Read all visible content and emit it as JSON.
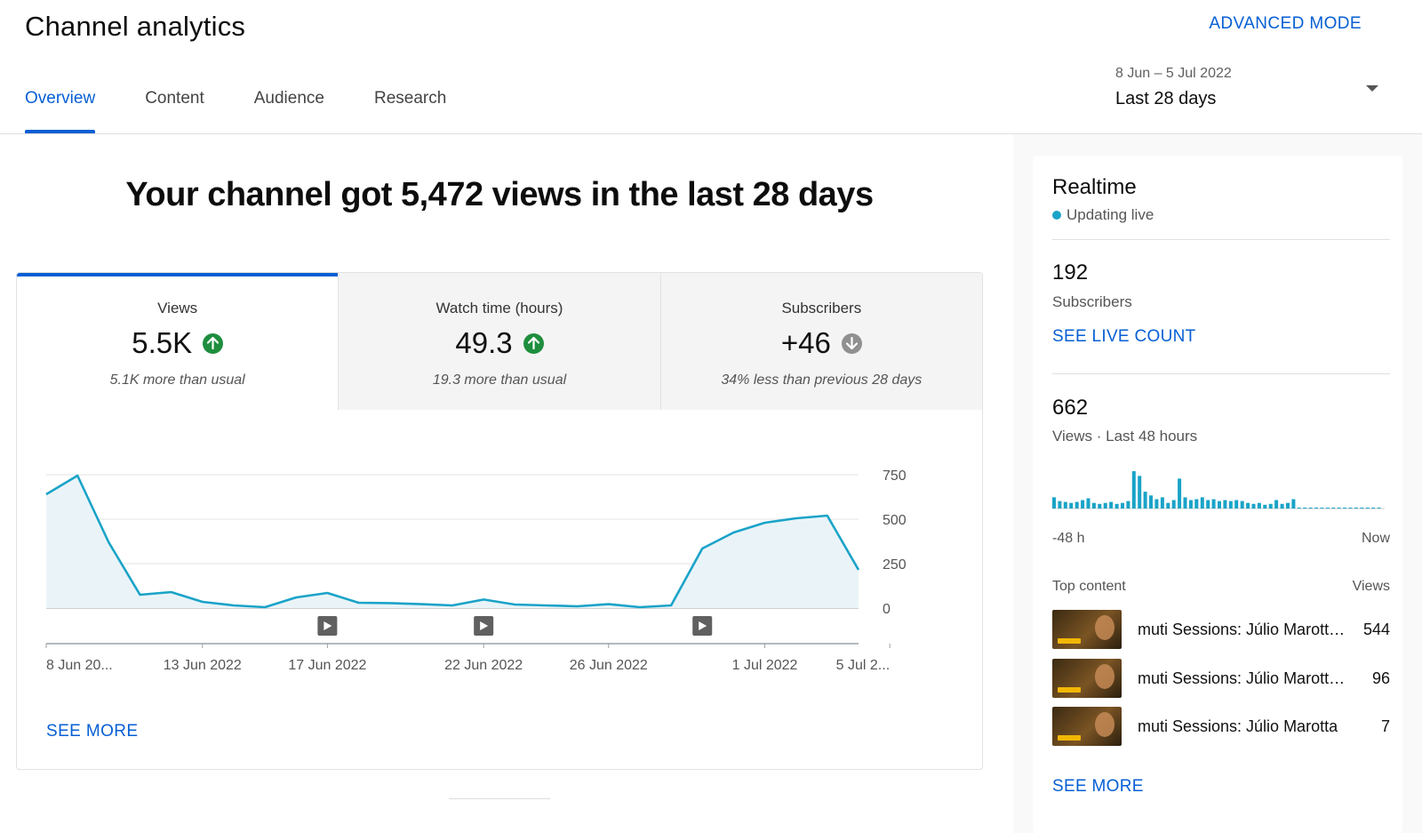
{
  "header": {
    "title": "Channel analytics",
    "advanced_mode": "ADVANCED MODE",
    "tabs": [
      {
        "label": "Overview",
        "active": true
      },
      {
        "label": "Content",
        "active": false
      },
      {
        "label": "Audience",
        "active": false
      },
      {
        "label": "Research",
        "active": false
      }
    ],
    "date_range": "8 Jun – 5 Jul 2022",
    "date_label": "Last 28 days"
  },
  "headline": "Your channel got 5,472 views in the last 28 days",
  "metrics": [
    {
      "label": "Views",
      "value": "5.5K",
      "trend": "up",
      "note": "5.1K more than usual"
    },
    {
      "label": "Watch time (hours)",
      "value": "49.3",
      "trend": "up",
      "note": "19.3 more than usual"
    },
    {
      "label": "Subscribers",
      "value": "+46",
      "trend": "down",
      "note": "34% less than previous 28 days"
    }
  ],
  "colors": {
    "accent": "#065fd4",
    "line": "#1aa3c8",
    "area": "#eaf4f8",
    "up": "#1e8e3e",
    "down": "#909090"
  },
  "chart_data": {
    "type": "area",
    "y_ticks": [
      "750",
      "500",
      "250",
      "0"
    ],
    "ylim": [
      0,
      750
    ],
    "x_tick_labels": [
      "8 Jun 20...",
      "13 Jun 2022",
      "17 Jun 2022",
      "22 Jun 2022",
      "26 Jun 2022",
      "1 Jul 2022",
      "5 Jul 2..."
    ],
    "x_tick_days": [
      0,
      5,
      9,
      14,
      18,
      23,
      27
    ],
    "video_markers_days": [
      9,
      14,
      21
    ],
    "series": [
      {
        "values": [
          640,
          745,
          370,
          75,
          90,
          35,
          15,
          5,
          60,
          85,
          30,
          28,
          22,
          15,
          48,
          20,
          15,
          10,
          22,
          5,
          15,
          335,
          425,
          480,
          505,
          520,
          215
        ]
      }
    ]
  },
  "card": {
    "see_more": "SEE MORE"
  },
  "realtime": {
    "title": "Realtime",
    "live_label": "Updating live",
    "subscribers_count": "192",
    "subscribers_label": "Subscribers",
    "see_live_count": "SEE LIVE COUNT",
    "views_count": "662",
    "views_label": "Views · Last 48 hours",
    "bar_values": [
      12,
      8,
      7,
      6,
      7,
      9,
      11,
      6,
      5,
      6,
      7,
      5,
      6,
      8,
      40,
      35,
      18,
      14,
      10,
      12,
      6,
      9,
      32,
      12,
      9,
      10,
      12,
      9,
      10,
      8,
      9,
      8,
      9,
      8,
      6,
      5,
      6,
      4,
      5,
      9,
      5,
      6,
      10,
      1,
      1,
      1,
      0,
      0,
      0,
      0,
      0,
      0,
      0,
      0,
      1,
      0,
      1,
      0
    ],
    "axis_left": "-48 h",
    "axis_right": "Now",
    "top_content_label": "Top content",
    "top_content_views_label": "Views",
    "top_content": [
      {
        "title": "muti Sessions: Júlio Marotta - Wolf",
        "views": "544"
      },
      {
        "title": "muti Sessions: Júlio Marotta - Raiz",
        "views": "96"
      },
      {
        "title": "muti Sessions: Júlio Marotta",
        "views": "7"
      }
    ],
    "see_more": "SEE MORE"
  }
}
